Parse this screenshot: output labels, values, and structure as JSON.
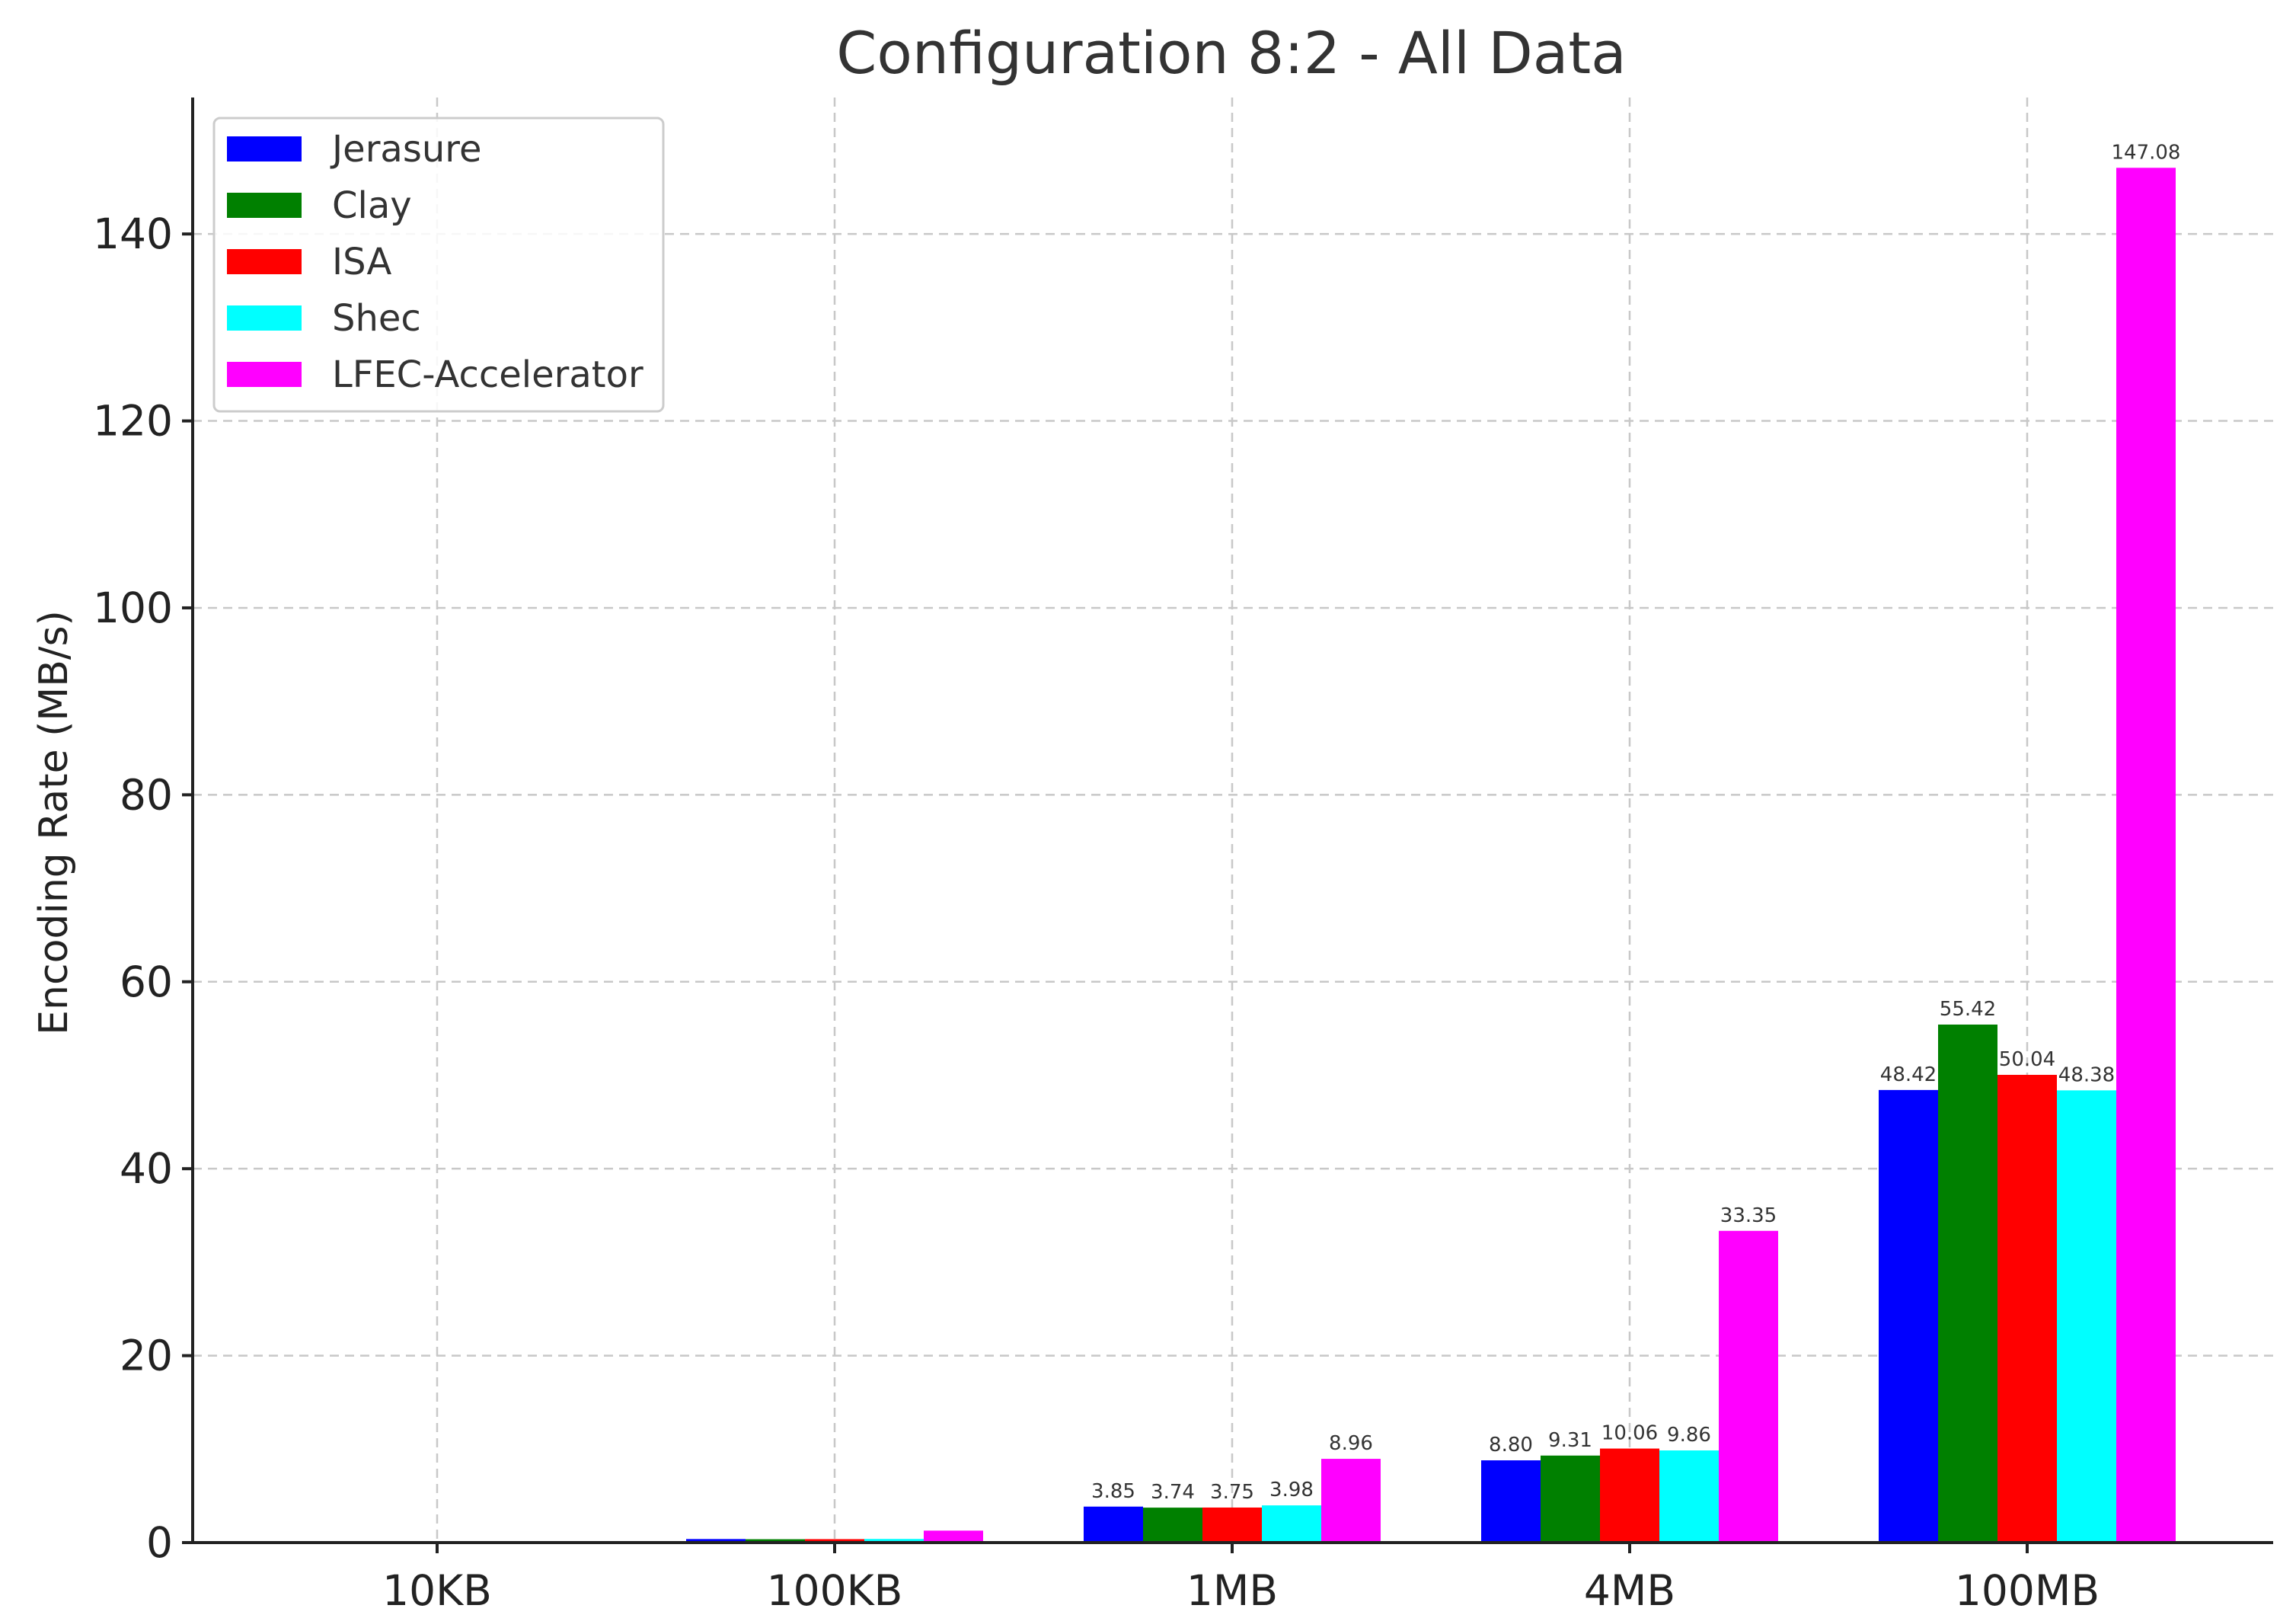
{
  "chart_data": {
    "type": "bar",
    "title": "Configuration 8:2 - All Data",
    "xlabel": "",
    "ylabel": "Encoding Rate (MB/s)",
    "categories": [
      "10KB",
      "100KB",
      "1MB",
      "4MB",
      "100MB"
    ],
    "ylim": [
      0,
      154.6
    ],
    "yticks": [
      0,
      20,
      40,
      60,
      80,
      100,
      120,
      140
    ],
    "grid": true,
    "legend_position": "top-left",
    "series": [
      {
        "name": "Jerasure",
        "color": "#0000ff",
        "values": [
          0.03,
          0.38,
          3.85,
          8.8,
          48.42
        ],
        "labels": [
          "",
          "",
          "3.85",
          "8.80",
          "48.42"
        ]
      },
      {
        "name": "Clay",
        "color": "#008000",
        "values": [
          0.02,
          0.36,
          3.74,
          9.31,
          55.42
        ],
        "labels": [
          "",
          "",
          "3.74",
          "9.31",
          "55.42"
        ]
      },
      {
        "name": "ISA",
        "color": "#ff0000",
        "values": [
          0.03,
          0.37,
          3.75,
          10.06,
          50.04
        ],
        "labels": [
          "",
          "",
          "3.75",
          "10.06",
          "50.04"
        ]
      },
      {
        "name": "Shec",
        "color": "#00ffff",
        "values": [
          0.03,
          0.39,
          3.98,
          9.86,
          48.38
        ],
        "labels": [
          "",
          "",
          "3.98",
          "9.86",
          "48.38"
        ]
      },
      {
        "name": "LFEC-Accelerator",
        "color": "#ff00ff",
        "values": [
          0.09,
          1.28,
          8.96,
          33.35,
          147.08
        ],
        "labels": [
          "",
          "",
          "8.96",
          "33.35",
          "147.08"
        ]
      }
    ]
  }
}
